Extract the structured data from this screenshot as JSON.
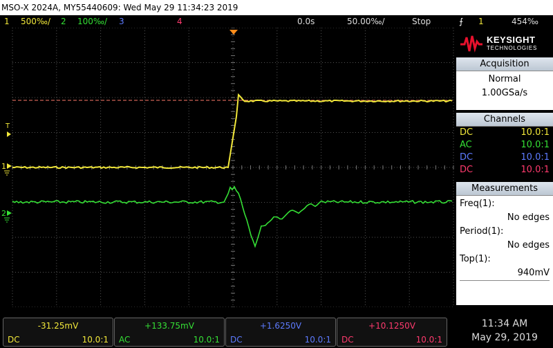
{
  "title": "MSO-X 2024A, MY55440609: Wed May 29 11:34:23 2019",
  "status": {
    "ch1_scale": "500‰/",
    "ch2_scale": "100‰/",
    "ch3_label": "3",
    "ch4_label": "4",
    "ch1_num": "1",
    "ch2_num": "2",
    "delay": "0.0s",
    "timebase": "50.00‰/",
    "run_state": "Stop",
    "trigger_icon": "rising-edge-trigger-icon",
    "trigger_source": "1",
    "trigger_level": "454‰"
  },
  "brand": {
    "name": "KEYSIGHT",
    "sub": "TECHNOLOGIES"
  },
  "acquisition": {
    "header": "Acquisition",
    "mode": "Normal",
    "rate": "1.00GSa/s"
  },
  "channels": {
    "header": "Channels",
    "items": [
      {
        "coupling": "DC",
        "probe": "10.0:1",
        "color": "#f2e83a"
      },
      {
        "coupling": "AC",
        "probe": "10.0:1",
        "color": "#35e035"
      },
      {
        "coupling": "DC",
        "probe": "10.0:1",
        "color": "#5d7bff"
      },
      {
        "coupling": "DC",
        "probe": "10.0:1",
        "color": "#ff3a6e"
      }
    ]
  },
  "measurements": {
    "header": "Measurements",
    "items": [
      {
        "label": "Freq(1):",
        "value": "No edges"
      },
      {
        "label": "Period(1):",
        "value": "No edges"
      },
      {
        "label": "Top(1):",
        "value": "940mV"
      }
    ]
  },
  "bottom_channels": [
    {
      "offset": "-31.25mV",
      "coupling": "DC",
      "probe": "10.0:1",
      "color": "#f2e83a"
    },
    {
      "offset": "+133.75mV",
      "coupling": "AC",
      "probe": "10.0:1",
      "color": "#35e035"
    },
    {
      "offset": "+1.6250V",
      "coupling": "DC",
      "probe": "10.0:1",
      "color": "#5d7bff"
    },
    {
      "offset": "+10.1250V",
      "coupling": "DC",
      "probe": "10.0:1",
      "color": "#ff3a6e"
    }
  ],
  "clock": {
    "time": "11:34 AM",
    "date": "May 29, 2019"
  },
  "markers": {
    "ch1": "1",
    "ch2": "2",
    "trigger": "T"
  }
}
